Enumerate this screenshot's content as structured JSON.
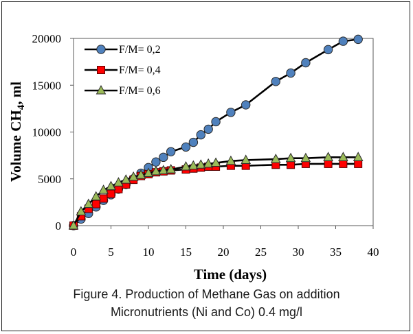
{
  "chart_data": {
    "type": "line",
    "title": "",
    "xlabel": "Time (days)",
    "ylabel_main": "Volume CH",
    "ylabel_sub": "4",
    "ylabel_tail": ", ml",
    "xlim": [
      0,
      40
    ],
    "ylim": [
      0,
      20000
    ],
    "xticks": [
      0,
      5,
      10,
      15,
      20,
      25,
      30,
      35,
      40
    ],
    "yticks": [
      0,
      5000,
      10000,
      15000,
      20000
    ],
    "grid": false,
    "legend_position": "top-left",
    "series": [
      {
        "name": "F/M= 0,2",
        "marker": "circle",
        "color": "#4f81bd",
        "x": [
          0,
          1,
          2,
          3,
          4,
          5,
          6,
          7,
          8,
          9,
          10,
          11,
          12,
          13,
          15,
          16,
          17,
          18,
          19,
          21,
          23,
          27,
          29,
          31,
          34,
          36,
          38
        ],
        "y": [
          0,
          700,
          1300,
          2000,
          2700,
          3300,
          3900,
          4400,
          5000,
          5600,
          6200,
          6800,
          7300,
          7900,
          8400,
          8900,
          9700,
          10300,
          11100,
          12100,
          12900,
          15400,
          16300,
          17400,
          18800,
          19700,
          19900
        ]
      },
      {
        "name": "F/M= 0,4",
        "marker": "square",
        "color": "#ff0000",
        "x": [
          0,
          1,
          2,
          3,
          4,
          5,
          6,
          7,
          8,
          9,
          10,
          11,
          12,
          13,
          15,
          16,
          17,
          18,
          19,
          21,
          23,
          27,
          29,
          31,
          34,
          36,
          38
        ],
        "y": [
          0,
          1000,
          1800,
          2300,
          2900,
          3400,
          3900,
          4400,
          4900,
          5300,
          5500,
          5700,
          5800,
          5900,
          6000,
          6100,
          6200,
          6300,
          6300,
          6400,
          6400,
          6500,
          6500,
          6600,
          6600,
          6600,
          6600
        ]
      },
      {
        "name": "F/M= 0,6",
        "marker": "triangle",
        "color": "#9bbb59",
        "x": [
          0,
          1,
          2,
          3,
          4,
          5,
          6,
          7,
          8,
          9,
          10,
          11,
          12,
          13,
          15,
          16,
          17,
          18,
          19,
          21,
          23,
          27,
          29,
          31,
          34,
          36,
          38
        ],
        "y": [
          0,
          1500,
          2300,
          3100,
          3800,
          4200,
          4600,
          4900,
          5200,
          5400,
          5600,
          5800,
          5900,
          6000,
          6300,
          6400,
          6500,
          6600,
          6700,
          6900,
          7000,
          7100,
          7200,
          7200,
          7300,
          7300,
          7300
        ]
      }
    ]
  },
  "caption": {
    "line1": "Figure 4. Production of Methane Gas on addition",
    "line2": "Micronutrients (Ni and Co) 0.4 mg/l"
  }
}
